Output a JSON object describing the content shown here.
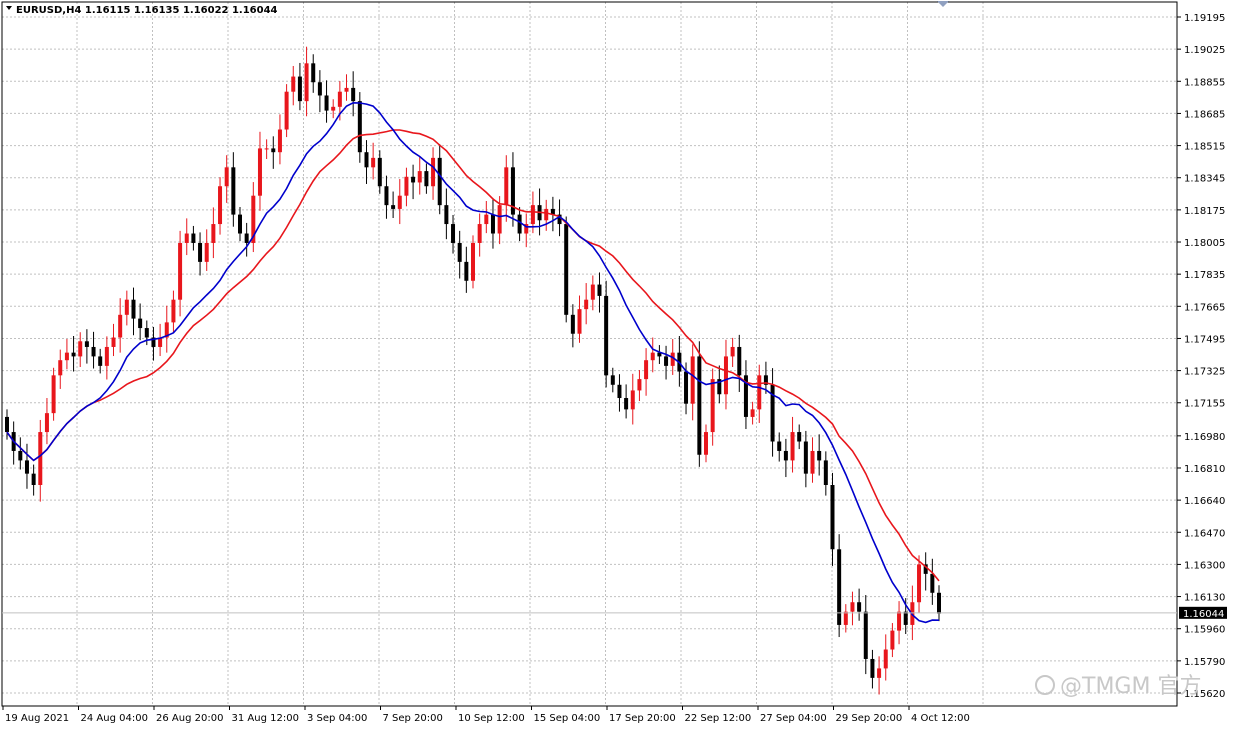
{
  "header": {
    "symbol_line": "EURUSD,H4  1.16115 1.16135 1.16022 1.16044"
  },
  "watermark": {
    "text": "@TMGM 官方"
  },
  "colors": {
    "background": "#ffffff",
    "grid": "#c0c0c0",
    "bull_candle": "#e8161c",
    "bear_candle": "#000000",
    "ma_fast": "#0000cc",
    "ma_slow": "#e8161c",
    "price_label_bg": "#000000",
    "price_label_text": "#ffffff"
  },
  "chart_data": {
    "type": "candlestick",
    "symbol": "EURUSD",
    "timeframe": "H4",
    "ylim": [
      1.1556,
      1.1925
    ],
    "price_ticks": [
      "1.19195",
      "1.19025",
      "1.18855",
      "1.18685",
      "1.18515",
      "1.18345",
      "1.18175",
      "1.18005",
      "1.17835",
      "1.17665",
      "1.17495",
      "1.17325",
      "1.17155",
      "1.16980",
      "1.16810",
      "1.16640",
      "1.16470",
      "1.16300",
      "1.16130",
      "1.15960",
      "1.15790",
      "1.15620"
    ],
    "current_price": "1.16044",
    "current_price_value": 1.16044,
    "time_ticks": [
      "19 Aug 2021",
      "24 Aug 04:00",
      "26 Aug 20:00",
      "31 Aug 12:00",
      "3 Sep 04:00",
      "7 Sep 20:00",
      "10 Sep 12:00",
      "15 Sep 04:00",
      "17 Sep 20:00",
      "22 Sep 12:00",
      "27 Sep 04:00",
      "29 Sep 20:00",
      "4 Oct 12:00"
    ],
    "grid": true,
    "closes": [
      1.17,
      1.169,
      1.1685,
      1.1678,
      1.1672,
      1.17,
      1.171,
      1.173,
      1.1738,
      1.1742,
      1.174,
      1.1748,
      1.1745,
      1.174,
      1.1735,
      1.1745,
      1.175,
      1.1762,
      1.177,
      1.176,
      1.1755,
      1.175,
      1.1745,
      1.175,
      1.1758,
      1.177,
      1.18,
      1.1805,
      1.18,
      1.179,
      1.18,
      1.181,
      1.183,
      1.184,
      1.1815,
      1.1805,
      1.18,
      1.1825,
      1.185,
      1.185,
      1.1848,
      1.186,
      1.188,
      1.1888,
      1.1875,
      1.1895,
      1.1885,
      1.1878,
      1.187,
      1.1872,
      1.188,
      1.1882,
      1.1875,
      1.1848,
      1.184,
      1.1845,
      1.183,
      1.182,
      1.1818,
      1.1825,
      1.1835,
      1.1832,
      1.1838,
      1.183,
      1.1845,
      1.182,
      1.181,
      1.18,
      1.179,
      1.178,
      1.18,
      1.181,
      1.1815,
      1.1805,
      1.182,
      1.184,
      1.1815,
      1.1805,
      1.181,
      1.182,
      1.1812,
      1.1818,
      1.1815,
      1.181,
      1.1762,
      1.1752,
      1.1765,
      1.177,
      1.1778,
      1.1772,
      1.173,
      1.1725,
      1.1718,
      1.1712,
      1.1722,
      1.1728,
      1.1738,
      1.1742,
      1.174,
      1.1735,
      1.1742,
      1.1732,
      1.1715,
      1.174,
      1.1688,
      1.17,
      1.1728,
      1.172,
      1.174,
      1.1745,
      1.173,
      1.1708,
      1.1712,
      1.173,
      1.1725,
      1.1695,
      1.169,
      1.1685,
      1.17,
      1.1695,
      1.1678,
      1.169,
      1.1685,
      1.1672,
      1.1638,
      1.1598,
      1.1605,
      1.161,
      1.1605,
      1.158,
      1.157,
      1.1575,
      1.1585,
      1.1595,
      1.1605,
      1.1598,
      1.161,
      1.163,
      1.1625,
      1.1615,
      1.1604
    ]
  }
}
